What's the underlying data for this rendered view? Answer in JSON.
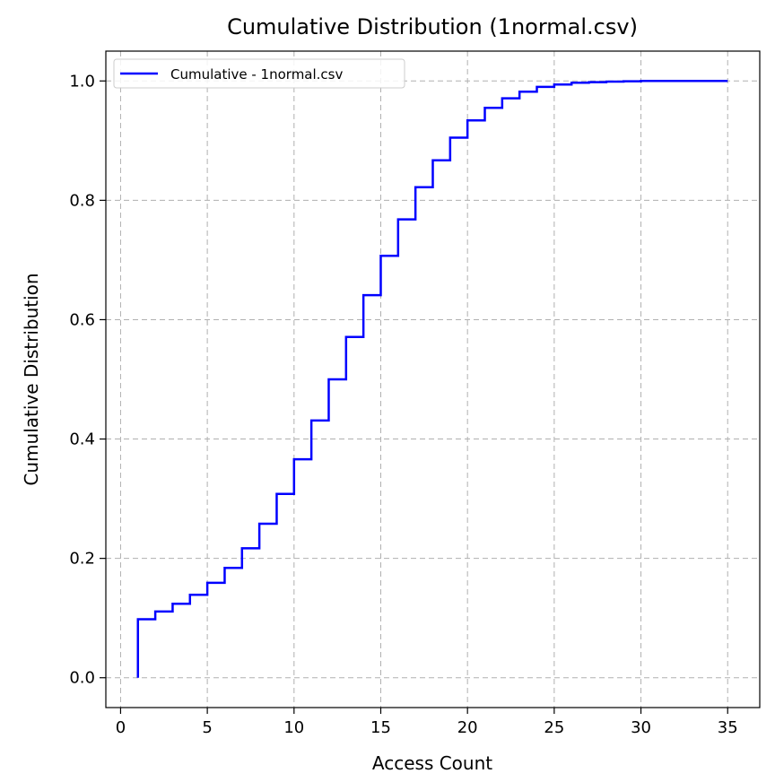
{
  "chart_data": {
    "type": "line",
    "step": "post",
    "title": "Cumulative Distribution (1normal.csv)",
    "xlabel": "Access Count",
    "ylabel": "Cumulative Distribution",
    "xlim": [
      -0.85,
      36.85
    ],
    "ylim": [
      -0.05,
      1.05
    ],
    "xticks": [
      0,
      5,
      10,
      15,
      20,
      25,
      30,
      35
    ],
    "yticks": [
      0.0,
      0.2,
      0.4,
      0.6,
      0.8,
      1.0
    ],
    "xtick_labels": [
      "0",
      "5",
      "10",
      "15",
      "20",
      "25",
      "30",
      "35"
    ],
    "ytick_labels": [
      "0.0",
      "0.2",
      "0.4",
      "0.6",
      "0.8",
      "1.0"
    ],
    "grid": true,
    "legend": "upper-left",
    "series": [
      {
        "name": "Cumulative - 1normal.csv",
        "color": "#0000ff",
        "x": [
          1,
          1,
          2,
          3,
          4,
          5,
          6,
          7,
          8,
          9,
          10,
          11,
          12,
          13,
          14,
          15,
          16,
          17,
          18,
          19,
          20,
          21,
          22,
          23,
          24,
          25,
          26,
          27,
          28,
          29,
          30,
          31,
          32,
          33,
          34,
          35
        ],
        "y": [
          0.0,
          0.098,
          0.111,
          0.124,
          0.139,
          0.159,
          0.184,
          0.217,
          0.258,
          0.308,
          0.366,
          0.431,
          0.5,
          0.571,
          0.641,
          0.707,
          0.768,
          0.822,
          0.867,
          0.905,
          0.934,
          0.955,
          0.971,
          0.982,
          0.99,
          0.994,
          0.997,
          0.998,
          0.999,
          0.9995,
          1.0,
          1.0,
          1.0,
          1.0,
          1.0,
          1.0
        ]
      }
    ]
  }
}
